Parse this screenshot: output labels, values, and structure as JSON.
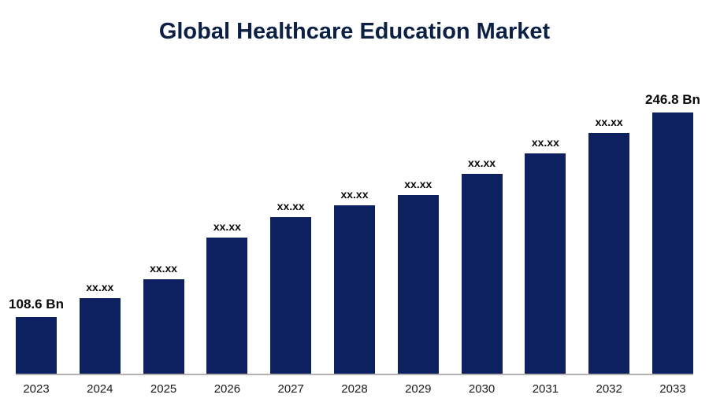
{
  "chart_data": {
    "type": "bar",
    "title": "Global Healthcare Education Market",
    "categories": [
      "2023",
      "2024",
      "2025",
      "2026",
      "2027",
      "2028",
      "2029",
      "2030",
      "2031",
      "2032",
      "2033"
    ],
    "values": [
      108.6,
      121,
      134,
      162,
      176,
      184,
      191,
      205,
      219,
      233,
      246.8
    ],
    "bar_labels": [
      "108.6 Bn",
      "xx.xx",
      "xx.xx",
      "xx.xx",
      "xx.xx",
      "xx.xx",
      "xx.xx",
      "xx.xx",
      "xx.xx",
      "xx.xx",
      "246.8 Bn"
    ],
    "unit": "Bn",
    "xlabel": "",
    "ylabel": "",
    "ylim": [
      70,
      250
    ],
    "grid": false,
    "legend_position": "none",
    "bar_color": "#0d2161",
    "title_color": "#0b2043",
    "axis_line_color": "#b3b3b3",
    "label_color": "#0a0a0a"
  }
}
